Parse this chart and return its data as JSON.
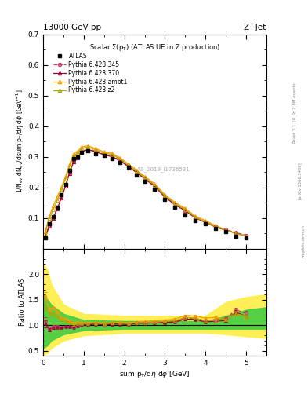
{
  "title_top_left": "13000 GeV pp",
  "title_top_right": "Z+Jet",
  "plot_title": "Scalar Σ(p_T) (ATLAS UE in Z production)",
  "watermark": "ATLAS_2019_I1736531",
  "xlabel": "sum p_T/dη dϕ [GeV]",
  "ylabel": "1/N_{ev} dN_{ev}/dsum p_T/dη dϕ [GeV^{-1}]",
  "ylabel_ratio": "Ratio to ATLAS",
  "right_text1": "Rivet 3.1.10, ≥ 2.8M events",
  "right_text2": "[arXiv:1306.3436]",
  "right_text3": "mcplots.cern.ch",
  "xlim": [
    0,
    5.5
  ],
  "ylim_main": [
    0,
    0.7
  ],
  "ylim_ratio": [
    0.4,
    2.5
  ],
  "yticks_main": [
    0.1,
    0.2,
    0.3,
    0.4,
    0.5,
    0.6,
    0.7
  ],
  "yticks_ratio": [
    0.5,
    1.0,
    1.5,
    2.0
  ],
  "xticks": [
    0,
    1,
    2,
    3,
    4,
    5
  ],
  "atlas_x": [
    0.05,
    0.15,
    0.25,
    0.35,
    0.45,
    0.55,
    0.65,
    0.75,
    0.85,
    0.95,
    1.1,
    1.3,
    1.5,
    1.7,
    1.9,
    2.1,
    2.3,
    2.5,
    2.75,
    3.0,
    3.25,
    3.5,
    3.75,
    4.0,
    4.25,
    4.5,
    4.75,
    5.0
  ],
  "atlas_y": [
    0.035,
    0.08,
    0.105,
    0.135,
    0.175,
    0.21,
    0.255,
    0.295,
    0.3,
    0.315,
    0.32,
    0.31,
    0.305,
    0.295,
    0.28,
    0.265,
    0.24,
    0.22,
    0.195,
    0.16,
    0.135,
    0.11,
    0.09,
    0.08,
    0.065,
    0.055,
    0.04,
    0.035
  ],
  "atlas_yerr": [
    0.005,
    0.005,
    0.005,
    0.005,
    0.005,
    0.005,
    0.005,
    0.005,
    0.005,
    0.005,
    0.005,
    0.005,
    0.005,
    0.005,
    0.005,
    0.005,
    0.005,
    0.005,
    0.004,
    0.004,
    0.004,
    0.004,
    0.003,
    0.003,
    0.003,
    0.003,
    0.003,
    0.003
  ],
  "py345_x": [
    0.05,
    0.15,
    0.25,
    0.35,
    0.45,
    0.55,
    0.65,
    0.75,
    0.85,
    0.95,
    1.1,
    1.3,
    1.5,
    1.7,
    1.9,
    2.1,
    2.3,
    2.5,
    2.75,
    3.0,
    3.25,
    3.5,
    3.75,
    4.0,
    4.25,
    4.5,
    4.75,
    5.0
  ],
  "py345_y": [
    0.038,
    0.075,
    0.102,
    0.132,
    0.168,
    0.205,
    0.248,
    0.285,
    0.298,
    0.318,
    0.325,
    0.318,
    0.308,
    0.302,
    0.288,
    0.27,
    0.25,
    0.23,
    0.205,
    0.17,
    0.145,
    0.125,
    0.102,
    0.087,
    0.072,
    0.062,
    0.052,
    0.043
  ],
  "py345_color": "#cc3366",
  "py345_linestyle": "--",
  "py370_x": [
    0.05,
    0.15,
    0.25,
    0.35,
    0.45,
    0.55,
    0.65,
    0.75,
    0.85,
    0.95,
    1.1,
    1.3,
    1.5,
    1.7,
    1.9,
    2.1,
    2.3,
    2.5,
    2.75,
    3.0,
    3.25,
    3.5,
    3.75,
    4.0,
    4.25,
    4.5,
    4.75,
    5.0
  ],
  "py370_y": [
    0.036,
    0.073,
    0.1,
    0.13,
    0.166,
    0.203,
    0.246,
    0.283,
    0.296,
    0.316,
    0.323,
    0.316,
    0.306,
    0.3,
    0.286,
    0.268,
    0.248,
    0.228,
    0.203,
    0.168,
    0.143,
    0.123,
    0.1,
    0.085,
    0.07,
    0.06,
    0.05,
    0.041
  ],
  "py370_color": "#990033",
  "py370_linestyle": "-",
  "pyambt1_x": [
    0.05,
    0.15,
    0.25,
    0.35,
    0.45,
    0.55,
    0.65,
    0.75,
    0.85,
    0.95,
    1.1,
    1.3,
    1.5,
    1.7,
    1.9,
    2.1,
    2.3,
    2.5,
    2.75,
    3.0,
    3.25,
    3.5,
    3.75,
    4.0,
    4.25,
    4.5,
    4.75,
    5.0
  ],
  "pyambt1_y": [
    0.055,
    0.105,
    0.14,
    0.17,
    0.2,
    0.235,
    0.275,
    0.308,
    0.318,
    0.332,
    0.336,
    0.326,
    0.316,
    0.311,
    0.296,
    0.276,
    0.256,
    0.236,
    0.211,
    0.176,
    0.151,
    0.131,
    0.106,
    0.091,
    0.075,
    0.061,
    0.049,
    0.041
  ],
  "pyambt1_color": "#ff9900",
  "pyambt1_linestyle": "-",
  "pyz2_x": [
    0.05,
    0.15,
    0.25,
    0.35,
    0.45,
    0.55,
    0.65,
    0.75,
    0.85,
    0.95,
    1.1,
    1.3,
    1.5,
    1.7,
    1.9,
    2.1,
    2.3,
    2.5,
    2.75,
    3.0,
    3.25,
    3.5,
    3.75,
    4.0,
    4.25,
    4.5,
    4.75,
    5.0
  ],
  "pyz2_y": [
    0.048,
    0.098,
    0.128,
    0.158,
    0.193,
    0.228,
    0.268,
    0.302,
    0.312,
    0.327,
    0.332,
    0.322,
    0.312,
    0.307,
    0.292,
    0.272,
    0.252,
    0.232,
    0.207,
    0.172,
    0.147,
    0.127,
    0.102,
    0.087,
    0.071,
    0.061,
    0.049,
    0.041
  ],
  "pyz2_color": "#aaaa00",
  "pyz2_linestyle": "-",
  "green_band_x": [
    0.0,
    0.1,
    0.2,
    0.5,
    1.0,
    2.0,
    3.0,
    4.0,
    4.5,
    5.0,
    5.5
  ],
  "green_band_lo": [
    0.55,
    0.6,
    0.7,
    0.82,
    0.9,
    0.93,
    0.93,
    0.93,
    0.93,
    0.93,
    0.93
  ],
  "green_band_hi": [
    1.6,
    1.5,
    1.4,
    1.22,
    1.1,
    1.08,
    1.08,
    1.08,
    1.18,
    1.3,
    1.35
  ],
  "yellow_band_x": [
    0.0,
    0.1,
    0.2,
    0.5,
    1.0,
    2.0,
    3.0,
    4.0,
    4.5,
    5.0,
    5.5
  ],
  "yellow_band_lo": [
    0.42,
    0.45,
    0.55,
    0.7,
    0.8,
    0.85,
    0.85,
    0.85,
    0.82,
    0.78,
    0.75
  ],
  "yellow_band_hi": [
    2.2,
    2.1,
    1.8,
    1.4,
    1.22,
    1.18,
    1.18,
    1.18,
    1.45,
    1.55,
    1.6
  ]
}
